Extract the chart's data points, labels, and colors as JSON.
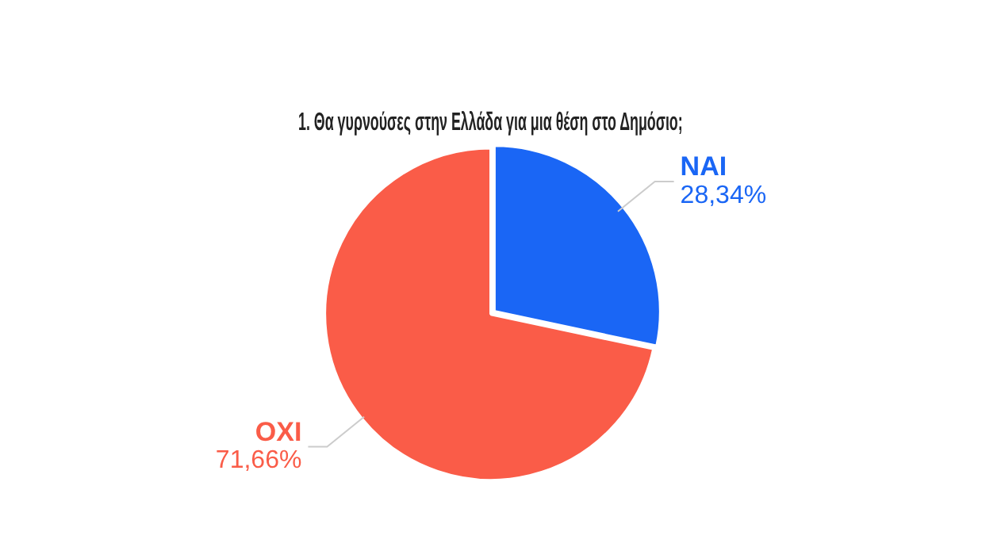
{
  "chart_data": {
    "type": "pie",
    "title": "1. Θα γυρνούσες στην Ελλάδα για μια θέση στο Δημόσιο;",
    "categories": [
      "ΝΑΙ",
      "ΟΧΙ"
    ],
    "values": [
      28.34,
      71.66
    ],
    "colors": [
      "#1a66f5",
      "#fa5c48"
    ],
    "value_labels": [
      "28,34%",
      "71,66%"
    ],
    "legend": false
  }
}
